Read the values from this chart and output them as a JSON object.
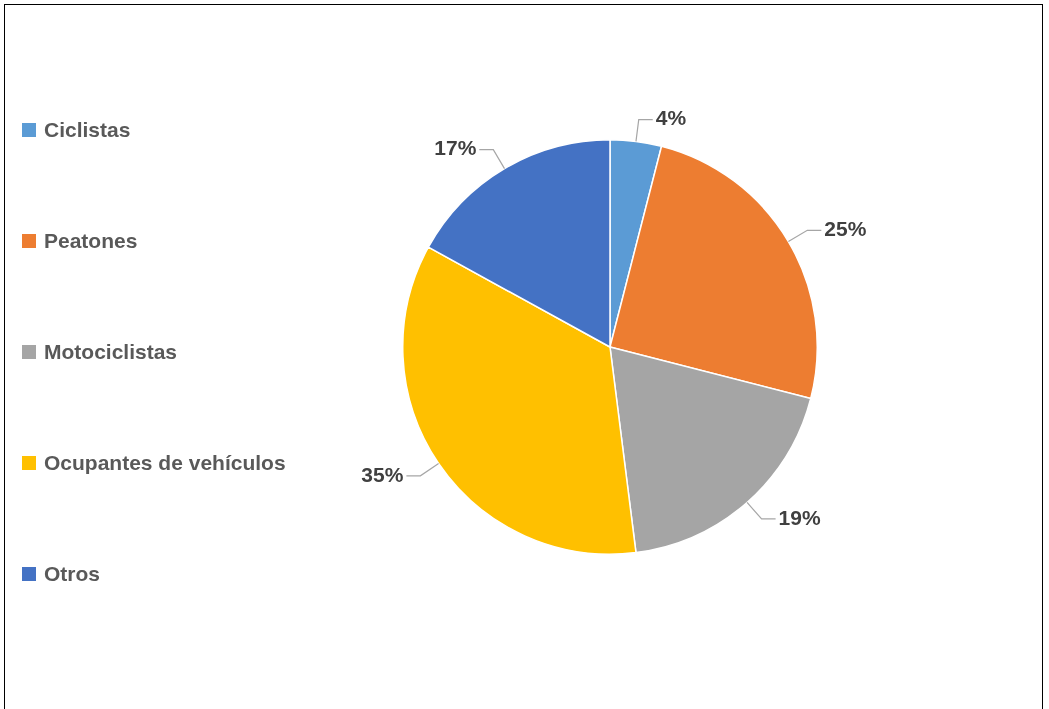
{
  "chart_data": {
    "type": "pie",
    "categories": [
      "Ciclistas",
      "Peatones",
      "Motociclistas",
      "Ocupantes de vehículos",
      "Otros"
    ],
    "values": [
      4,
      25,
      19,
      35,
      17
    ],
    "value_labels": [
      "4%",
      "25%",
      "19%",
      "35%",
      "17%"
    ],
    "colors": [
      "#5b9bd5",
      "#ed7d31",
      "#a5a5a5",
      "#ffc000",
      "#4472c4"
    ],
    "legend": "left"
  }
}
